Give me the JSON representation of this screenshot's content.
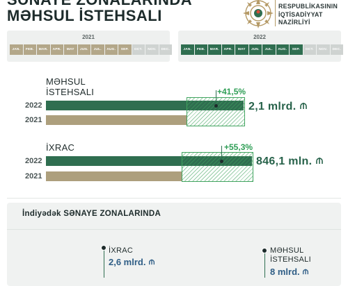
{
  "header": {
    "title_line1": "SƏNAYE ZONALARINDA",
    "title_line2": "MƏHSUL İSTEHSALI",
    "ministry_line1": "RESPUBLİKASININ",
    "ministry_line2": "İQTİSADİYYAT",
    "ministry_line3": "NAZİRLİYİ",
    "emblem_icon": "azerbaijan-emblem-icon"
  },
  "panels": {
    "left": {
      "year": "2021",
      "active_color": "#b3a789",
      "months": [
        {
          "label": "JAN.",
          "active": true
        },
        {
          "label": "FEB.",
          "active": true
        },
        {
          "label": "MAR.",
          "active": true
        },
        {
          "label": "APR.",
          "active": true
        },
        {
          "label": "MAY",
          "active": true
        },
        {
          "label": "JUN.",
          "active": true
        },
        {
          "label": "JUL.",
          "active": true
        },
        {
          "label": "AUG.",
          "active": true
        },
        {
          "label": "SEP.",
          "active": true
        },
        {
          "label": "OCT.",
          "active": false
        },
        {
          "label": "NOV.",
          "active": false
        },
        {
          "label": "DEC.",
          "active": false
        }
      ]
    },
    "right": {
      "year": "2022",
      "active_color": "#2f6e50",
      "months": [
        {
          "label": "JAN.",
          "active": true
        },
        {
          "label": "FEB.",
          "active": true
        },
        {
          "label": "MAR.",
          "active": true
        },
        {
          "label": "APR.",
          "active": true
        },
        {
          "label": "MAY",
          "active": true
        },
        {
          "label": "JUN.",
          "active": true
        },
        {
          "label": "JUL.",
          "active": true
        },
        {
          "label": "AUG.",
          "active": true
        },
        {
          "label": "SEP.",
          "active": true
        },
        {
          "label": "OCT.",
          "active": false
        },
        {
          "label": "NOV.",
          "active": false
        },
        {
          "label": "DEC.",
          "active": false
        }
      ]
    }
  },
  "comparisons": {
    "production": {
      "label_line1": "MƏHSUL",
      "label_line2": "İSTEHSALI",
      "year_current": "2022",
      "year_previous": "2021",
      "growth": "+41,5%",
      "value": "2,1 mlrd.",
      "currency_icon": "manat-icon"
    },
    "export": {
      "label": "İXRAC",
      "year_current": "2022",
      "year_previous": "2021",
      "growth": "+55,3%",
      "value": "846,1 mln.",
      "currency_icon": "manat-icon"
    }
  },
  "bottom": {
    "title": "İndiyədək SƏNAYE ZONALARINDA",
    "export_label": "İXRAC",
    "export_value": "2,6 mlrd.",
    "production_label_line1": "MƏHSUL",
    "production_label_line2": "İSTEHSALI",
    "production_value": "8 mlrd."
  },
  "colors": {
    "dark_green": "#2f6e50",
    "tan": "#ad9f7d",
    "growth_green": "#2e9e55",
    "value_blue": "#2f5e86"
  }
}
